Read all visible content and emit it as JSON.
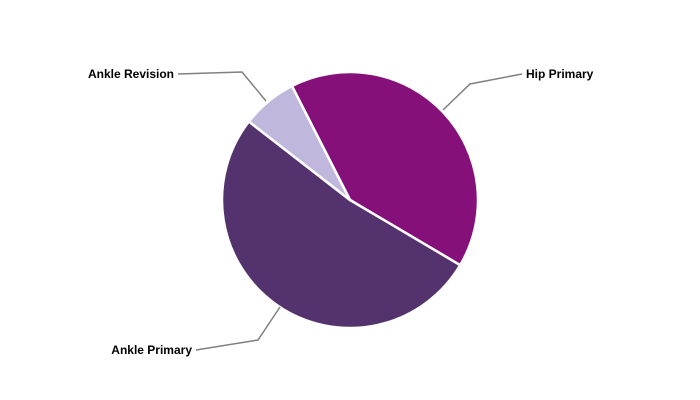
{
  "chart_data": {
    "type": "pie",
    "title": "",
    "start_angle_deg": -27,
    "direction": "clockwise",
    "slices": [
      {
        "label": "Hip Primary",
        "value": 41,
        "color": "#85107A"
      },
      {
        "label": "Ankle Primary",
        "value": 52,
        "color": "#54326E"
      },
      {
        "label": "Ankle Revision",
        "value": 7,
        "color": "#BFB8DC"
      }
    ],
    "legend": "none",
    "labels": "outside-with-leader-lines"
  }
}
